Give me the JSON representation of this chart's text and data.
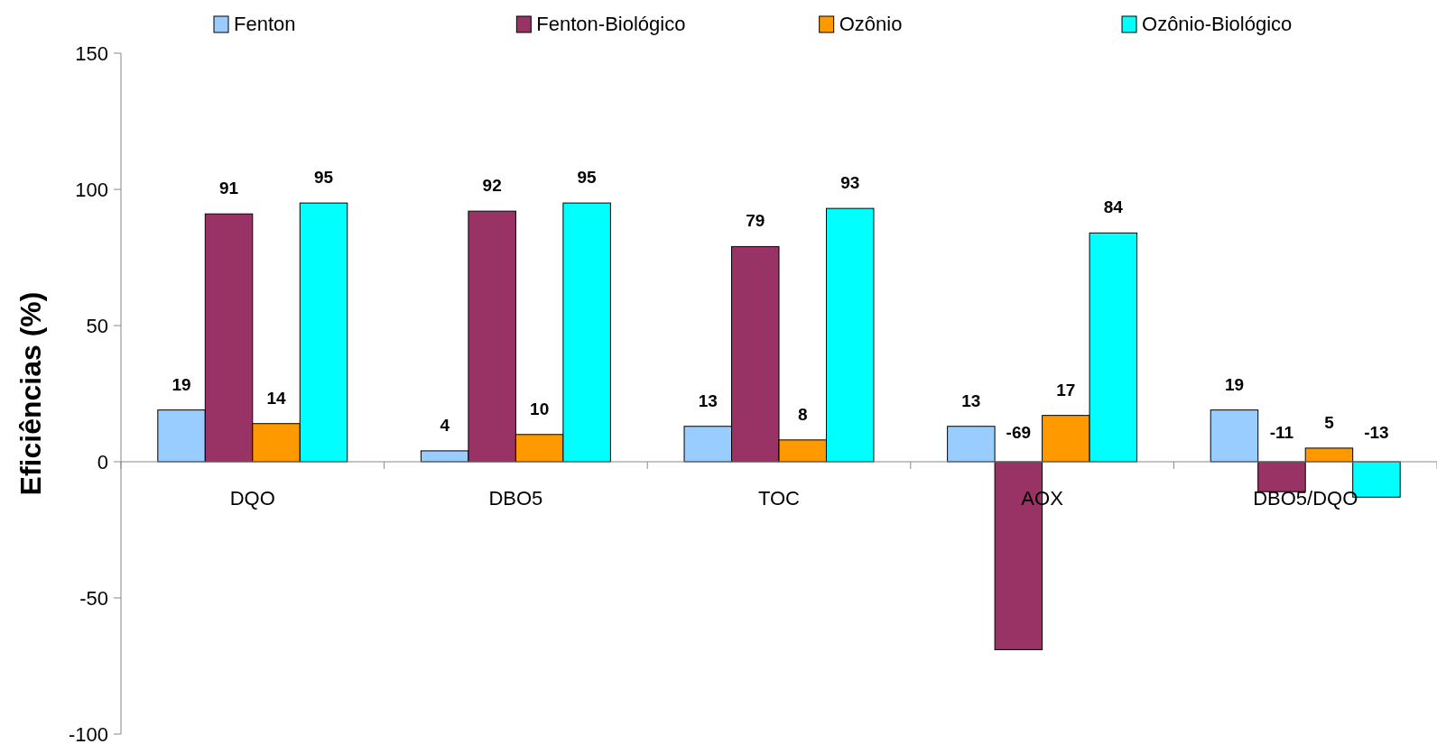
{
  "chart_data": {
    "type": "bar",
    "ylabel": "Eficiências (%)",
    "categories": [
      "DQO",
      "DBO5",
      "TOC",
      "AOX",
      "DBO5/DQO"
    ],
    "series": [
      {
        "name": "Fenton",
        "color": "#99ccff",
        "values": [
          19,
          4,
          13,
          13,
          19
        ]
      },
      {
        "name": "Fenton-Biológico",
        "color": "#993366",
        "values": [
          91,
          92,
          79,
          -69,
          -11
        ]
      },
      {
        "name": "Ozônio",
        "color": "#ff9900",
        "values": [
          14,
          10,
          8,
          17,
          5
        ]
      },
      {
        "name": "Ozônio-Biológico",
        "color": "#00ffff",
        "values": [
          95,
          95,
          93,
          84,
          -13
        ]
      }
    ],
    "ylim": [
      -100,
      150
    ],
    "yticks": [
      -100,
      -50,
      0,
      50,
      100,
      150
    ],
    "data_labels": true,
    "legend": "top",
    "grid": false
  }
}
